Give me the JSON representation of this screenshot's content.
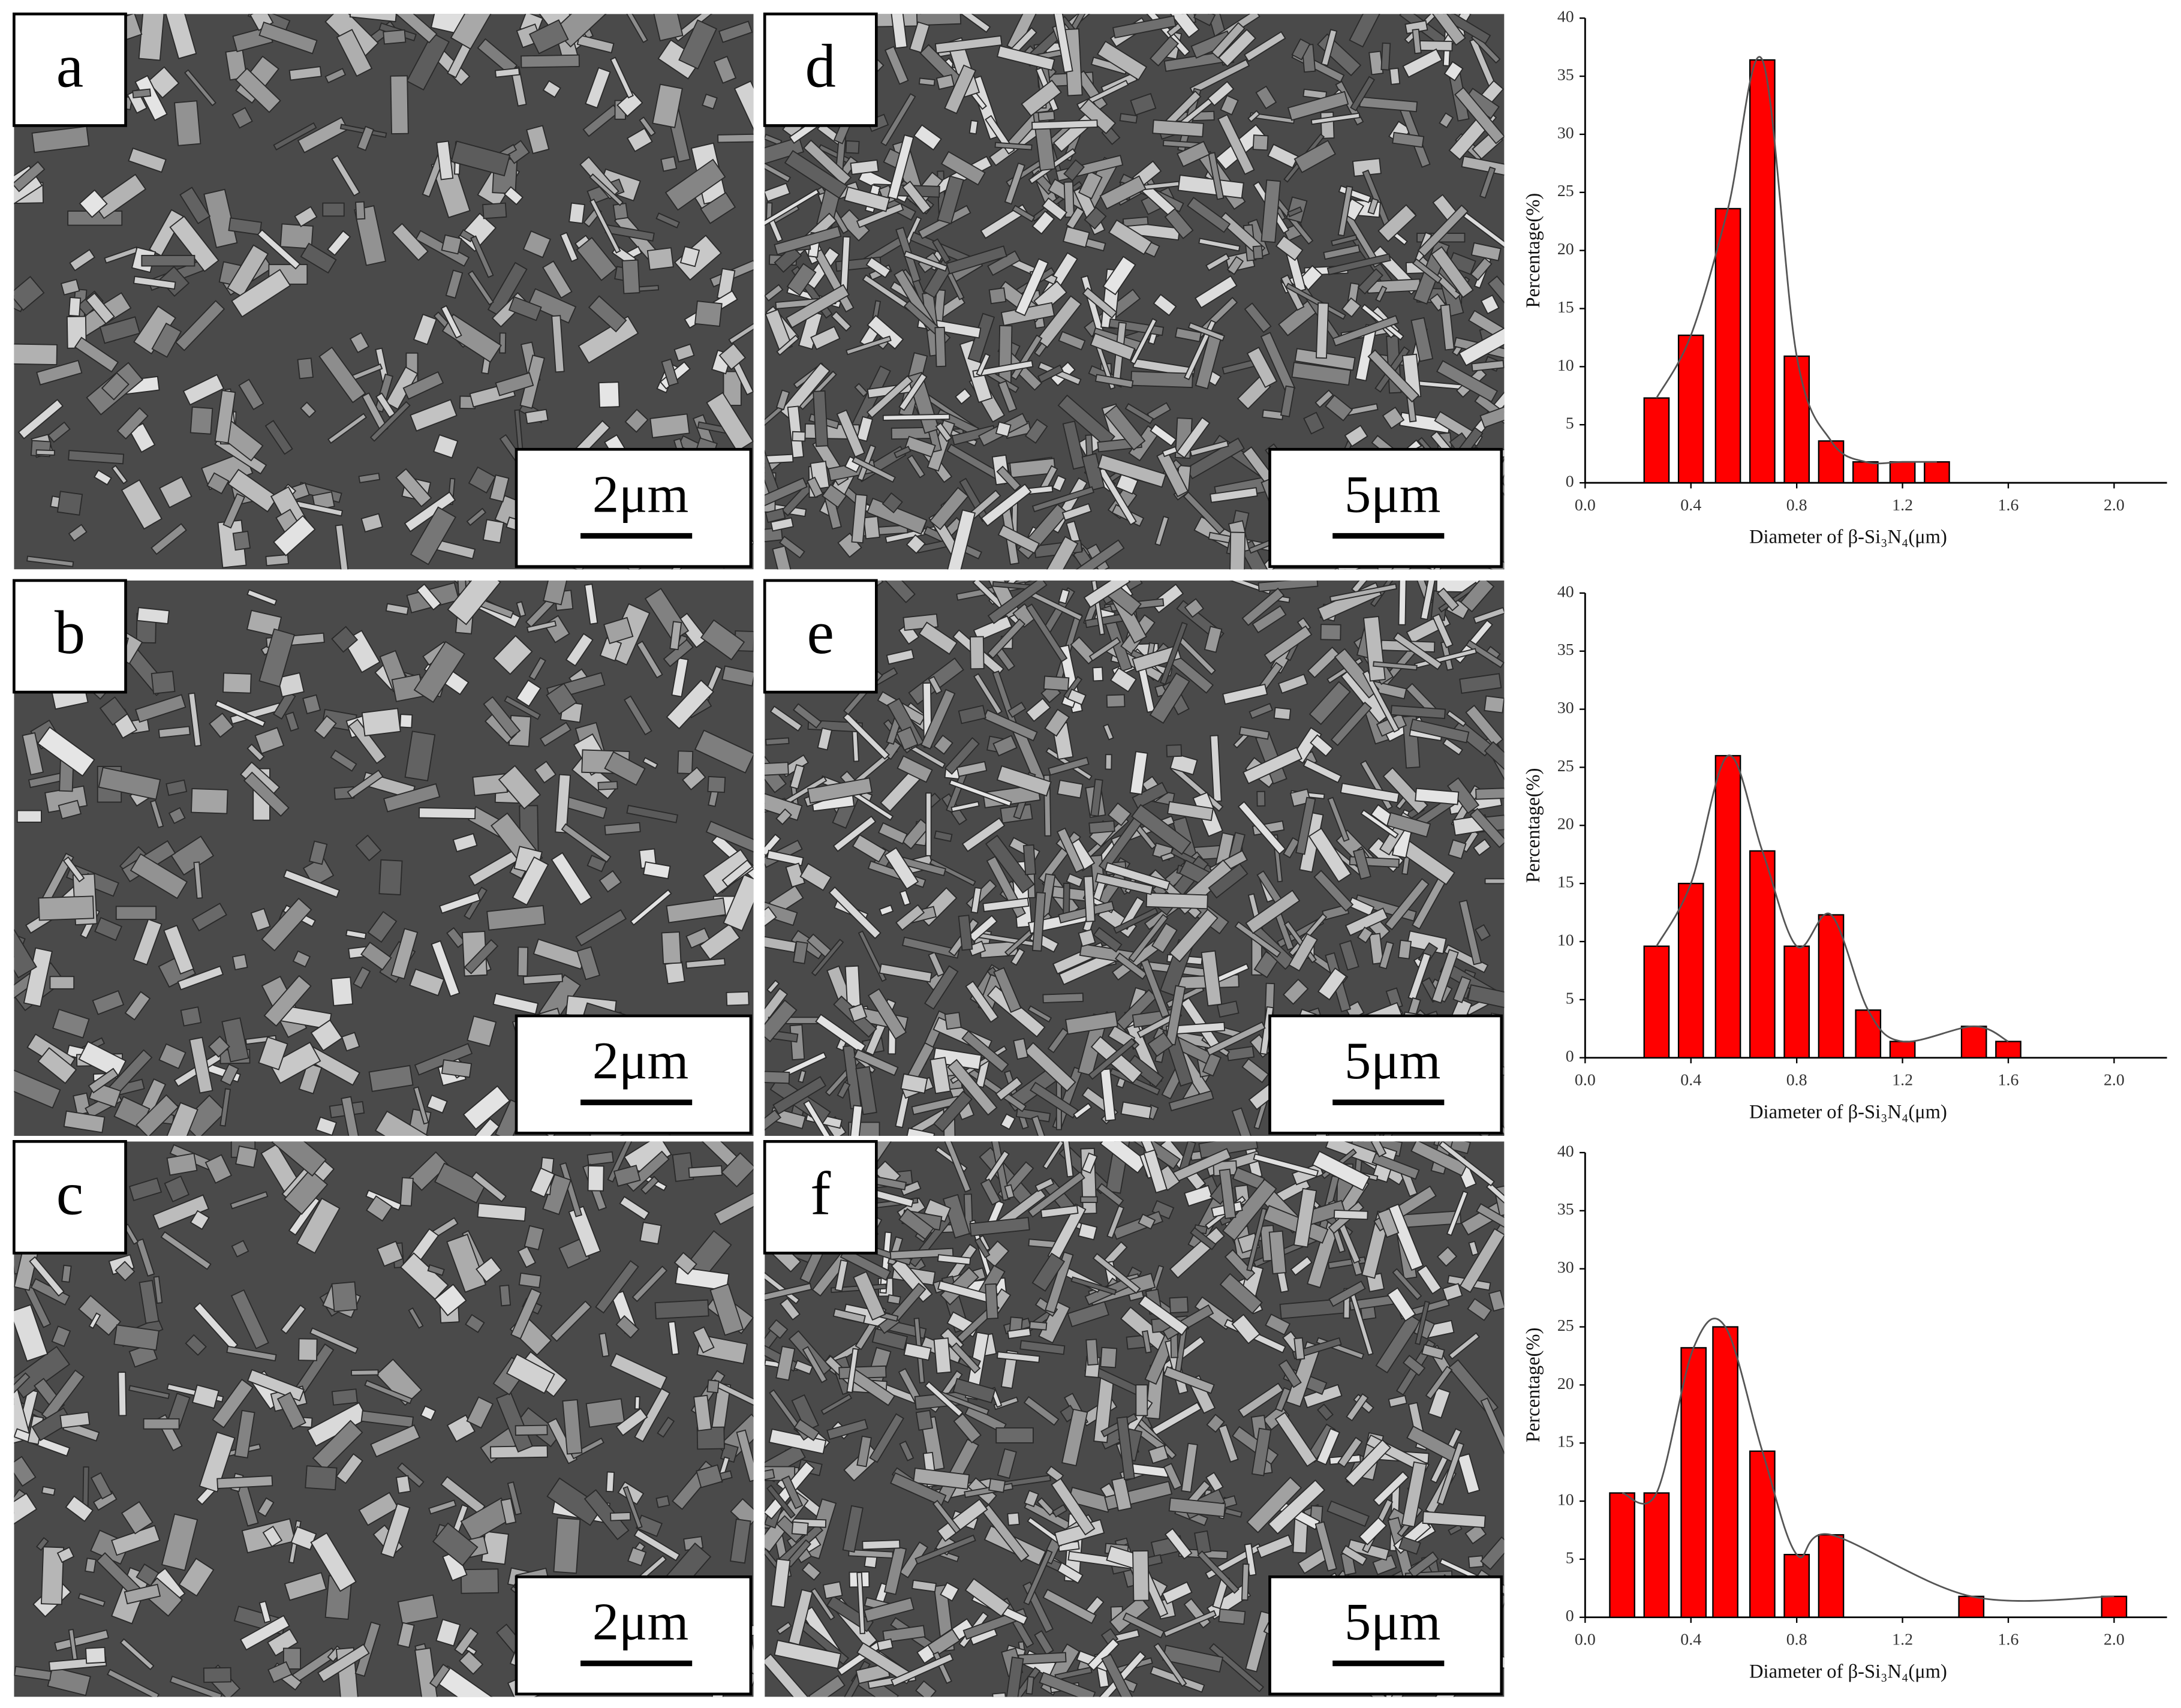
{
  "panels": [
    {
      "label": "a",
      "scale": "2μm"
    },
    {
      "label": "b",
      "scale": "2μm"
    },
    {
      "label": "c",
      "scale": "2μm"
    },
    {
      "label": "d",
      "scale": "5μm"
    },
    {
      "label": "e",
      "scale": "5μm"
    },
    {
      "label": "f",
      "scale": "5μm"
    }
  ],
  "chart_data": [
    {
      "type": "bar",
      "xlabel": "Diameter of β-Si₃N₄(μm)",
      "ylabel": "Percentage(%)",
      "color": "#ff0000",
      "x": [
        0.27,
        0.4,
        0.54,
        0.67,
        0.8,
        0.93,
        1.06,
        1.2,
        1.33
      ],
      "values": [
        7.3,
        12.7,
        23.6,
        36.4,
        10.9,
        3.6,
        1.8,
        1.8,
        1.8
      ],
      "xlim": [
        0,
        2.2
      ],
      "ylim": [
        0,
        40
      ],
      "xticks": [
        {
          "value": 0,
          "label": "0.0"
        },
        0.4,
        0.8,
        1.2,
        1.6,
        {
          "value": 2,
          "label": "2.0"
        }
      ],
      "yticks": [
        0,
        5,
        10,
        15,
        20,
        25,
        30,
        35,
        40
      ]
    },
    {
      "type": "bar",
      "xlabel": "Diameter of β-Si₃N₄(μm)",
      "ylabel": "Percentage(%)",
      "color": "#ff0000",
      "x": [
        0.27,
        0.4,
        0.54,
        0.67,
        0.8,
        0.93,
        1.07,
        1.2,
        1.47,
        1.6
      ],
      "values": [
        9.6,
        15,
        26,
        17.8,
        9.6,
        12.3,
        4.1,
        1.4,
        2.7,
        1.4
      ],
      "xlim": [
        0,
        2.2
      ],
      "ylim": [
        0,
        40
      ],
      "xticks": [
        {
          "value": 0,
          "label": "0.0"
        },
        0.4,
        0.8,
        1.2,
        1.6,
        {
          "value": 2,
          "label": "2.0"
        }
      ],
      "yticks": [
        0,
        5,
        10,
        15,
        20,
        25,
        30,
        35,
        40
      ]
    },
    {
      "type": "bar",
      "xlabel": "Diameter of β-Si₃N₄(μm)",
      "ylabel": "Percentage(%)",
      "color": "#ff0000",
      "x": [
        0.14,
        0.27,
        0.41,
        0.53,
        0.67,
        0.8,
        0.93,
        1.46,
        2.0
      ],
      "values": [
        10.7,
        10.7,
        23.2,
        25,
        14.3,
        5.4,
        7.1,
        1.8,
        1.8
      ],
      "xlim": [
        0,
        2.2
      ],
      "ylim": [
        0,
        40
      ],
      "xticks": [
        {
          "value": 0,
          "label": "0.0"
        },
        0.4,
        0.8,
        1.2,
        1.6,
        {
          "value": 2,
          "label": "2.0"
        }
      ],
      "yticks": [
        0,
        5,
        10,
        15,
        20,
        25,
        30,
        35,
        40
      ]
    }
  ]
}
